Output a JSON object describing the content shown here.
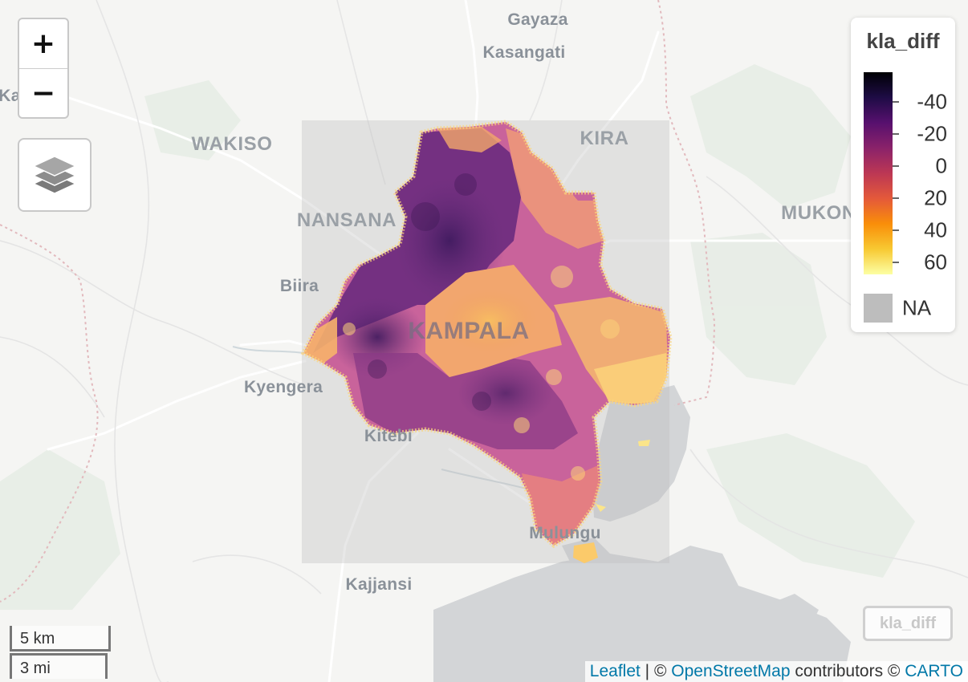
{
  "map": {
    "places": [
      {
        "id": "gayaza",
        "label": "Gayaza",
        "kind": "town"
      },
      {
        "id": "kasangati",
        "label": "Kasangati",
        "kind": "town"
      },
      {
        "id": "ka",
        "label": "Ka",
        "kind": "town"
      },
      {
        "id": "wakiso",
        "label": "WAKISO",
        "kind": "area"
      },
      {
        "id": "kira",
        "label": "KIRA",
        "kind": "area"
      },
      {
        "id": "nansana",
        "label": "NANSANA",
        "kind": "area"
      },
      {
        "id": "mukono",
        "label": "MUKON",
        "kind": "area"
      },
      {
        "id": "biira",
        "label": "Biira",
        "kind": "town"
      },
      {
        "id": "kampala",
        "label": "KAMPALA",
        "kind": "city"
      },
      {
        "id": "kyengera",
        "label": "Kyengera",
        "kind": "town"
      },
      {
        "id": "kitebi",
        "label": "Kitebi",
        "kind": "town"
      },
      {
        "id": "mulungu",
        "label": "Mulungu",
        "kind": "town"
      },
      {
        "id": "kajjansi",
        "label": "Kajjansi",
        "kind": "town"
      }
    ]
  },
  "controls": {
    "zoom_in": "+",
    "zoom_out": "−",
    "layers_icon": "layers-icon",
    "overlay_group_label": "kla_diff"
  },
  "legend": {
    "title": "kla_diff",
    "palette": "inferno",
    "colors": [
      "#000004",
      "#1e0c45",
      "#57106e",
      "#8a226a",
      "#bc3754",
      "#e4593a",
      "#f98e09",
      "#f8c932",
      "#fcffa4"
    ],
    "ticks": [
      "-40",
      "-20",
      "0",
      "20",
      "40",
      "60"
    ],
    "na_label": "NA",
    "na_color": "#bdbdbd"
  },
  "scale": {
    "metric": "5 km",
    "imperial": "3 mi"
  },
  "attribution": {
    "leaflet": "Leaflet",
    "sep1": " | © ",
    "osm": "OpenStreetMap",
    "mid": " contributors © ",
    "carto": "CARTO"
  }
}
